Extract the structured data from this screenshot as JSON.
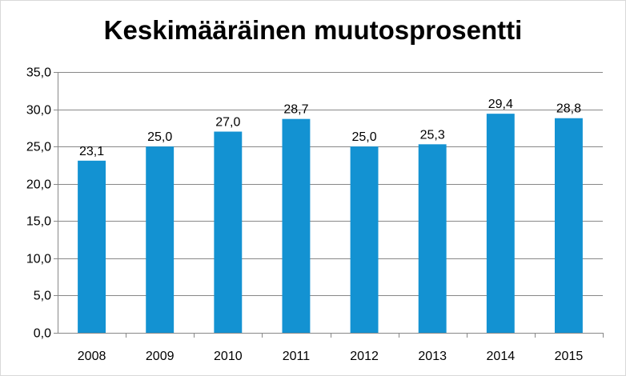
{
  "chart_data": {
    "type": "bar",
    "title": "Keskimääräinen muutosprosentti",
    "categories": [
      "2008",
      "2009",
      "2010",
      "2011",
      "2012",
      "2013",
      "2014",
      "2015"
    ],
    "values": [
      23.1,
      25.0,
      27.0,
      28.7,
      25.0,
      25.3,
      29.4,
      28.8
    ],
    "value_labels": [
      "23,1",
      "25,0",
      "27,0",
      "28,7",
      "25,0",
      "25,3",
      "29,4",
      "28,8"
    ],
    "y_ticks": [
      0,
      5,
      10,
      15,
      20,
      25,
      30,
      35
    ],
    "y_tick_labels": [
      "0,0",
      "5,0",
      "10,0",
      "15,0",
      "20,0",
      "25,0",
      "30,0",
      "35,0"
    ],
    "ylim": [
      0,
      35
    ],
    "xlabel": "",
    "ylabel": "",
    "grid": true,
    "legend": "none",
    "colors": {
      "bar": "#1392d2",
      "grid": "#888888",
      "axis": "#888888"
    }
  }
}
